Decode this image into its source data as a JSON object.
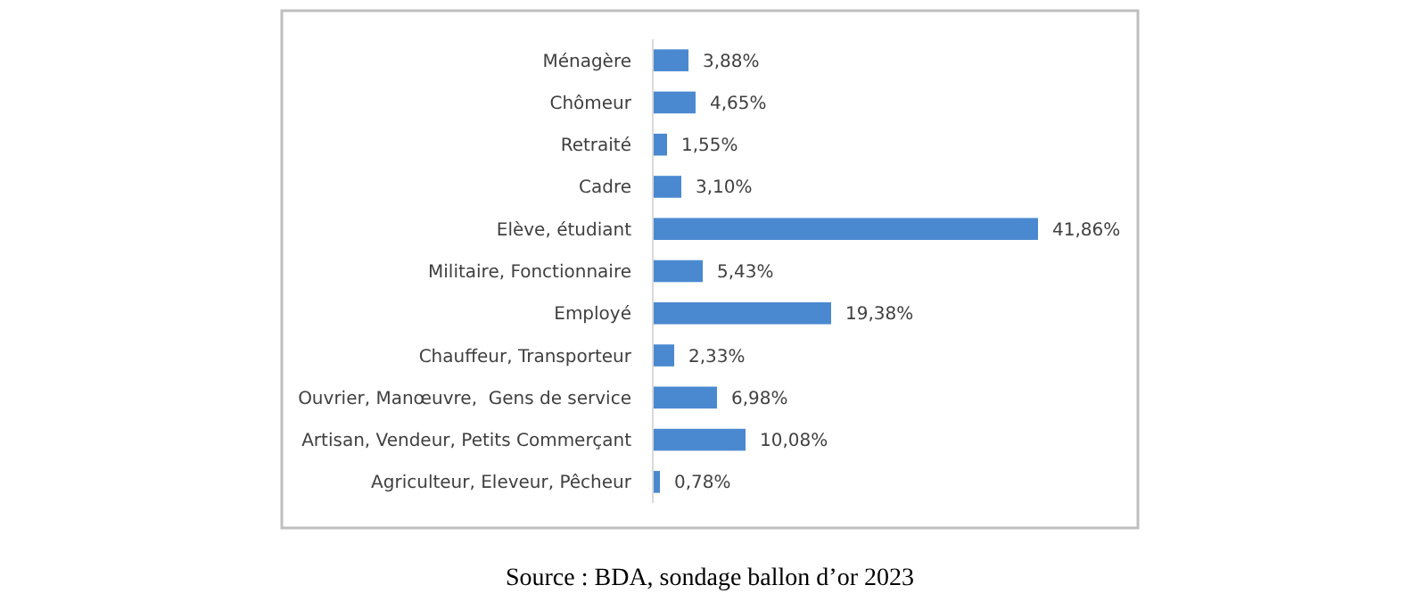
{
  "chart_data": {
    "type": "bar",
    "orientation": "horizontal",
    "categories": [
      "Ménagère",
      "Chômeur",
      "Retraité",
      "Cadre",
      "Elève, étudiant",
      "Militaire, Fonctionnaire",
      "Employé",
      "Chauffeur, Transporteur",
      "Ouvrier, Manœuvre,  Gens de service",
      "Artisan, Vendeur, Petits Commerçant",
      "Agriculteur, Eleveur, Pêcheur"
    ],
    "values": [
      3.88,
      4.65,
      1.55,
      3.1,
      41.86,
      5.43,
      19.38,
      2.33,
      6.98,
      10.08,
      0.78
    ],
    "value_labels": [
      "3,88%",
      "4,65%",
      "1,55%",
      "3,10%",
      "41,86%",
      "5,43%",
      "19,38%",
      "2,33%",
      "6,98%",
      "10,08%",
      "0,78%"
    ],
    "color": "#4a89d0",
    "annotations": [
      "Source : BDA, sondage ballon d’or 2023"
    ]
  }
}
